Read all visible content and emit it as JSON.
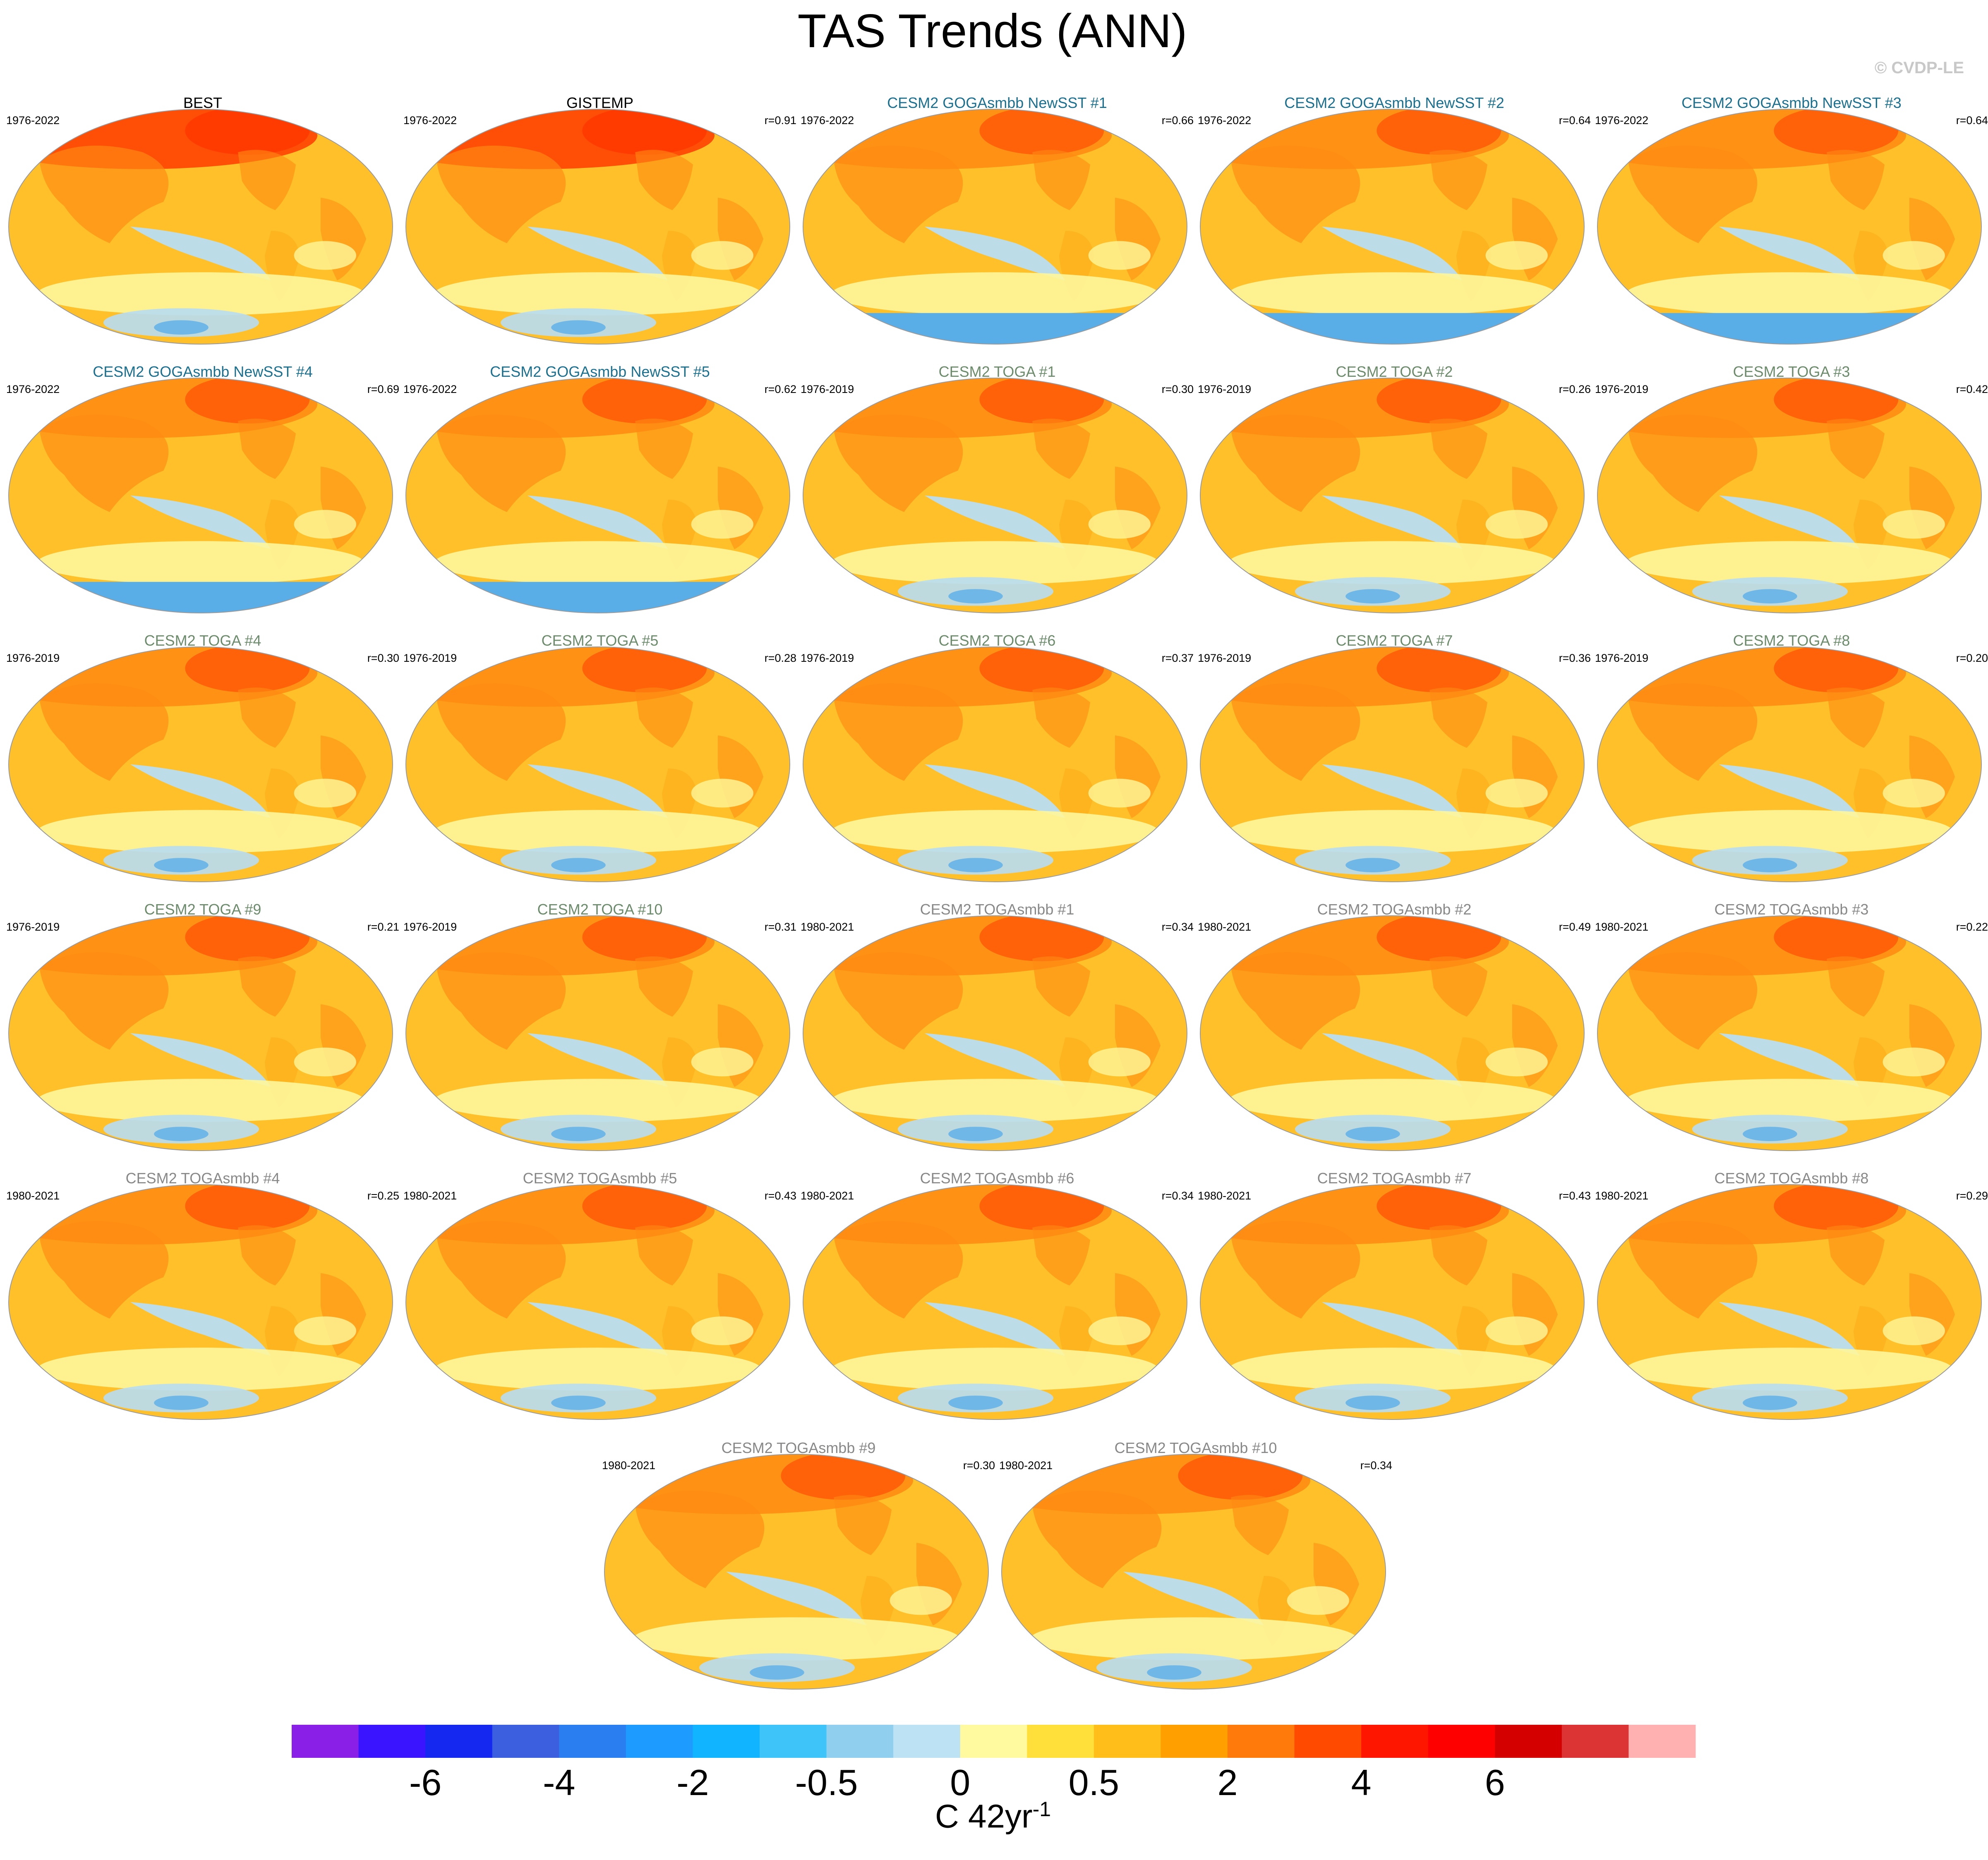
{
  "title": "TAS Trends (ANN)",
  "watermark": "© CVDP-LE",
  "colors": {
    "obs_title": "#000000",
    "goga_title": "#1b6f8f",
    "toga_title": "#6b8b6b",
    "togasmbb_title": "#888888",
    "ocean_base": "#ffc02a",
    "land_base": "#fdb31e",
    "warm_dark": "#ff8a12",
    "warm_hot": "#ff3a00",
    "cool": "#b8ddf2",
    "cool_dark": "#5aaee8",
    "neutral": "#fef69a"
  },
  "panels": [
    {
      "title": "BEST",
      "period": "1976-2022",
      "corr": "",
      "group": "obs"
    },
    {
      "title": "GISTEMP",
      "period": "1976-2022",
      "corr": "r=0.91",
      "group": "obs"
    },
    {
      "title": "CESM2 GOGAsmbb NewSST #1",
      "period": "1976-2022",
      "corr": "r=0.66",
      "group": "goga"
    },
    {
      "title": "CESM2 GOGAsmbb NewSST #2",
      "period": "1976-2022",
      "corr": "r=0.64",
      "group": "goga"
    },
    {
      "title": "CESM2 GOGAsmbb NewSST #3",
      "period": "1976-2022",
      "corr": "r=0.64",
      "group": "goga"
    },
    {
      "title": "CESM2 GOGAsmbb NewSST #4",
      "period": "1976-2022",
      "corr": "r=0.69",
      "group": "goga"
    },
    {
      "title": "CESM2 GOGAsmbb NewSST #5",
      "period": "1976-2022",
      "corr": "r=0.62",
      "group": "goga"
    },
    {
      "title": "CESM2 TOGA #1",
      "period": "1976-2019",
      "corr": "r=0.30",
      "group": "toga"
    },
    {
      "title": "CESM2 TOGA #2",
      "period": "1976-2019",
      "corr": "r=0.26",
      "group": "toga"
    },
    {
      "title": "CESM2 TOGA #3",
      "period": "1976-2019",
      "corr": "r=0.42",
      "group": "toga"
    },
    {
      "title": "CESM2 TOGA #4",
      "period": "1976-2019",
      "corr": "r=0.30",
      "group": "toga"
    },
    {
      "title": "CESM2 TOGA #5",
      "period": "1976-2019",
      "corr": "r=0.28",
      "group": "toga"
    },
    {
      "title": "CESM2 TOGA #6",
      "period": "1976-2019",
      "corr": "r=0.37",
      "group": "toga"
    },
    {
      "title": "CESM2 TOGA #7",
      "period": "1976-2019",
      "corr": "r=0.36",
      "group": "toga"
    },
    {
      "title": "CESM2 TOGA #8",
      "period": "1976-2019",
      "corr": "r=0.20",
      "group": "toga"
    },
    {
      "title": "CESM2 TOGA #9",
      "period": "1976-2019",
      "corr": "r=0.21",
      "group": "toga"
    },
    {
      "title": "CESM2 TOGA #10",
      "period": "1976-2019",
      "corr": "r=0.31",
      "group": "toga"
    },
    {
      "title": "CESM2 TOGAsmbb #1",
      "period": "1980-2021",
      "corr": "r=0.34",
      "group": "togasmbb"
    },
    {
      "title": "CESM2 TOGAsmbb #2",
      "period": "1980-2021",
      "corr": "r=0.49",
      "group": "togasmbb"
    },
    {
      "title": "CESM2 TOGAsmbb #3",
      "period": "1980-2021",
      "corr": "r=0.22",
      "group": "togasmbb"
    },
    {
      "title": "CESM2 TOGAsmbb #4",
      "period": "1980-2021",
      "corr": "r=0.25",
      "group": "togasmbb"
    },
    {
      "title": "CESM2 TOGAsmbb #5",
      "period": "1980-2021",
      "corr": "r=0.43",
      "group": "togasmbb"
    },
    {
      "title": "CESM2 TOGAsmbb #6",
      "period": "1980-2021",
      "corr": "r=0.34",
      "group": "togasmbb"
    },
    {
      "title": "CESM2 TOGAsmbb #7",
      "period": "1980-2021",
      "corr": "r=0.43",
      "group": "togasmbb"
    },
    {
      "title": "CESM2 TOGAsmbb #8",
      "period": "1980-2021",
      "corr": "r=0.29",
      "group": "togasmbb"
    },
    {
      "title": "CESM2 TOGAsmbb #9",
      "period": "1980-2021",
      "corr": "r=0.30",
      "group": "togasmbb"
    },
    {
      "title": "CESM2 TOGAsmbb #10",
      "period": "1980-2021",
      "corr": "r=0.34",
      "group": "togasmbb"
    }
  ],
  "colorbar": {
    "colors": [
      "#8a1fe8",
      "#3a14ff",
      "#1428f0",
      "#3c5fe0",
      "#2a7ef0",
      "#1e9bff",
      "#10b4ff",
      "#3ec4f8",
      "#90d0ee",
      "#bce2f4",
      "#fff9a0",
      "#ffe03a",
      "#ffbe1a",
      "#ffa000",
      "#ff7a0a",
      "#ff4a00",
      "#ff1600",
      "#ff0000",
      "#d40000",
      "#dc3434",
      "#ffb0b0"
    ],
    "tick_labels": [
      "-6",
      "-4",
      "-2",
      "-0.5",
      "0",
      "0.5",
      "2",
      "4",
      "6"
    ],
    "unit_label": "C 42yr",
    "unit_exponent": "-1"
  }
}
